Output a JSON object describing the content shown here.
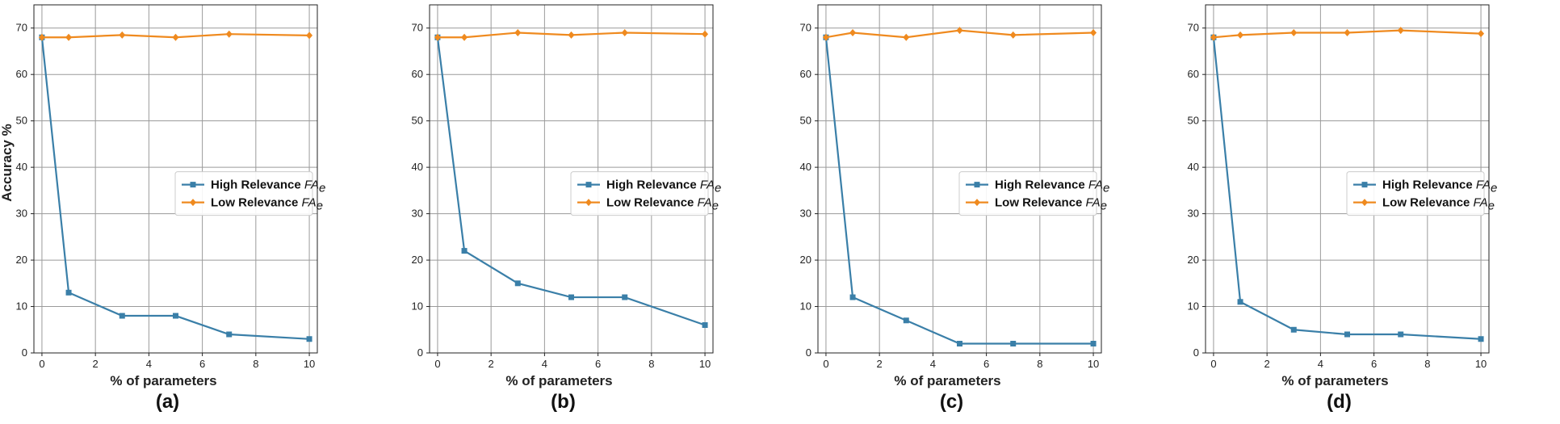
{
  "chart_data": [
    {
      "type": "line",
      "panel_label": "(a)",
      "xlabel": "% of parameters",
      "ylabel": "Accuracy %",
      "xlim": [
        -0.3,
        10.3
      ],
      "ylim": [
        0,
        75
      ],
      "xticks": [
        0,
        2,
        4,
        6,
        8,
        10
      ],
      "yticks": [
        0,
        10,
        20,
        30,
        40,
        50,
        60,
        70
      ],
      "grid": true,
      "legend_position": "center-right",
      "x": [
        0,
        1,
        3,
        5,
        7,
        10
      ],
      "series": [
        {
          "name": "High Relevance",
          "name_math": "FAe",
          "color": "#3a7fa8",
          "marker": "square",
          "values": [
            68,
            13,
            8,
            8,
            4,
            3
          ]
        },
        {
          "name": "Low Relevance",
          "name_math": "FAe",
          "color": "#ef8a1f",
          "marker": "diamond",
          "values": [
            68,
            68,
            68.5,
            68,
            68.7,
            68.4
          ]
        }
      ]
    },
    {
      "type": "line",
      "panel_label": "(b)",
      "xlabel": "% of parameters",
      "ylabel": "",
      "xlim": [
        -0.3,
        10.3
      ],
      "ylim": [
        0,
        75
      ],
      "xticks": [
        0,
        2,
        4,
        6,
        8,
        10
      ],
      "yticks": [
        0,
        10,
        20,
        30,
        40,
        50,
        60,
        70
      ],
      "grid": true,
      "legend_position": "center-right",
      "x": [
        0,
        1,
        3,
        5,
        7,
        10
      ],
      "series": [
        {
          "name": "High Relevance",
          "name_math": "FAe",
          "color": "#3a7fa8",
          "marker": "square",
          "values": [
            68,
            22,
            15,
            12,
            12,
            6
          ]
        },
        {
          "name": "Low Relevance",
          "name_math": "FAe",
          "color": "#ef8a1f",
          "marker": "diamond",
          "values": [
            68,
            68,
            69,
            68.5,
            69,
            68.7
          ]
        }
      ]
    },
    {
      "type": "line",
      "panel_label": "(c)",
      "xlabel": "% of parameters",
      "ylabel": "",
      "xlim": [
        -0.3,
        10.3
      ],
      "ylim": [
        0,
        75
      ],
      "xticks": [
        0,
        2,
        4,
        6,
        8,
        10
      ],
      "yticks": [
        0,
        10,
        20,
        30,
        40,
        50,
        60,
        70
      ],
      "grid": true,
      "legend_position": "center-right",
      "x": [
        0,
        1,
        3,
        5,
        7,
        10
      ],
      "series": [
        {
          "name": "High Relevance",
          "name_math": "FAe",
          "color": "#3a7fa8",
          "marker": "square",
          "values": [
            68,
            12,
            7,
            2,
            2,
            2
          ]
        },
        {
          "name": "Low Relevance",
          "name_math": "FAe",
          "color": "#ef8a1f",
          "marker": "diamond",
          "values": [
            68,
            69,
            68,
            69.5,
            68.5,
            69
          ]
        }
      ]
    },
    {
      "type": "line",
      "panel_label": "(d)",
      "xlabel": "% of parameters",
      "ylabel": "",
      "xlim": [
        -0.3,
        10.3
      ],
      "ylim": [
        0,
        75
      ],
      "xticks": [
        0,
        2,
        4,
        6,
        8,
        10
      ],
      "yticks": [
        0,
        10,
        20,
        30,
        40,
        50,
        60,
        70
      ],
      "grid": true,
      "legend_position": "center-right",
      "x": [
        0,
        1,
        3,
        5,
        7,
        10
      ],
      "series": [
        {
          "name": "High Relevance",
          "name_math": "FAe",
          "color": "#3a7fa8",
          "marker": "square",
          "values": [
            68,
            11,
            5,
            4,
            4,
            3
          ]
        },
        {
          "name": "Low Relevance",
          "name_math": "FAe",
          "color": "#ef8a1f",
          "marker": "diamond",
          "values": [
            68,
            68.5,
            69,
            69,
            69.5,
            68.8
          ]
        }
      ]
    }
  ]
}
